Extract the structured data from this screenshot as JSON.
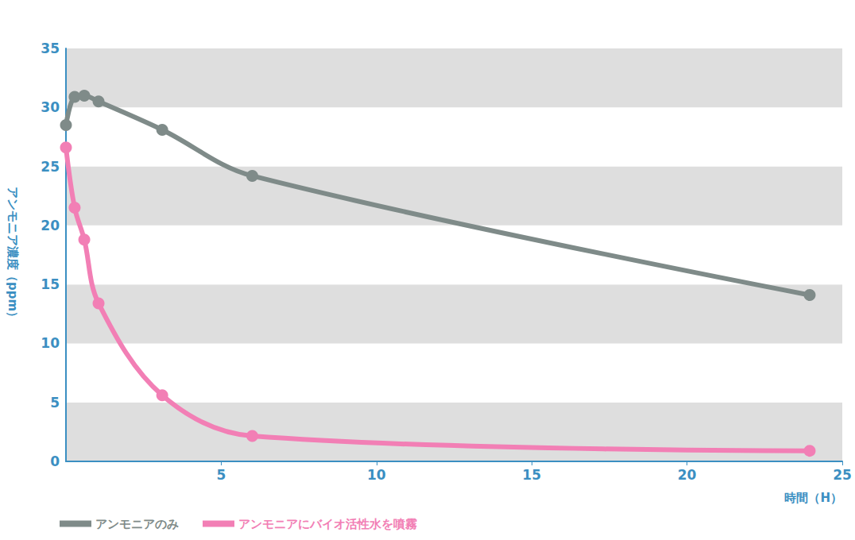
{
  "chart_data": {
    "type": "line",
    "x_label": "時間（H）",
    "y_label": "アンモニア濃度（ppm）",
    "series": [
      {
        "name": "アンモニアのみ",
        "color": "#7f8b89",
        "marker": "circle",
        "line_style": "solid",
        "x": [
          0,
          0.28,
          0.59,
          1.05,
          3.1,
          6.0,
          23.95
        ],
        "values": [
          28.5,
          30.9,
          31.0,
          30.5,
          28.1,
          24.2,
          14.1
        ]
      },
      {
        "name": "アンモニアにバイオ活性水を噴霧",
        "color": "#f27fb5",
        "marker": "circle",
        "line_style": "solid",
        "x": [
          0,
          0.28,
          0.59,
          1.05,
          3.1,
          6.0,
          23.95
        ],
        "values": [
          26.6,
          21.5,
          18.8,
          13.4,
          5.6,
          2.15,
          0.9
        ]
      }
    ],
    "xlim": [
      0,
      25
    ],
    "xticks": [
      5,
      10,
      15,
      20,
      25
    ],
    "ylim": [
      0,
      35
    ],
    "yticks": [
      0,
      5,
      10,
      15,
      20,
      25,
      30,
      35
    ],
    "grid": true,
    "legend": "bottom-left"
  }
}
